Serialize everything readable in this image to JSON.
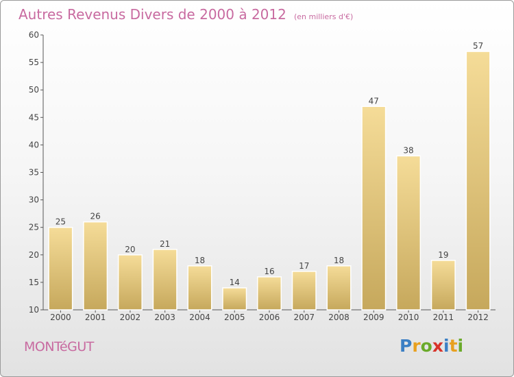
{
  "title": "Autres Revenus Divers de 2000 à 2012",
  "subtitle": "(en milliers d'€)",
  "town": "MONTéGUT",
  "logo": {
    "text": "Proxiti",
    "letters": [
      "P",
      "r",
      "o",
      "x",
      "i",
      "t",
      "i"
    ],
    "colors": [
      "#3b7fc4",
      "#e8a020",
      "#6aaa2a",
      "#d8332a",
      "#3b7fc4",
      "#e8a020",
      "#6aaa2a"
    ]
  },
  "colors": {
    "bar_top": "#f5dc98",
    "bar_bottom": "#c6a85c",
    "title": "#c86aa0",
    "axis": "#555555"
  },
  "chart_data": {
    "type": "bar",
    "categories": [
      "2000",
      "2001",
      "2002",
      "2003",
      "2004",
      "2005",
      "2006",
      "2007",
      "2008",
      "2009",
      "2010",
      "2011",
      "2012"
    ],
    "values": [
      25,
      26,
      20,
      21,
      18,
      14,
      16,
      17,
      18,
      47,
      38,
      19,
      57
    ],
    "data_labels": [
      "25",
      "26",
      "20",
      "21",
      "18",
      "14",
      "16",
      "17",
      "18",
      "47",
      "38",
      "19",
      "57"
    ],
    "title": "Autres Revenus Divers de 2000 à 2012",
    "ylim": [
      10,
      60
    ],
    "yticks": [
      10,
      15,
      20,
      25,
      30,
      35,
      40,
      45,
      50,
      55,
      60
    ],
    "ytick_labels": [
      "10",
      "15",
      "20",
      "25",
      "30",
      "35",
      "40",
      "45",
      "50",
      "55",
      "60"
    ],
    "grid": false,
    "legend": "none"
  }
}
